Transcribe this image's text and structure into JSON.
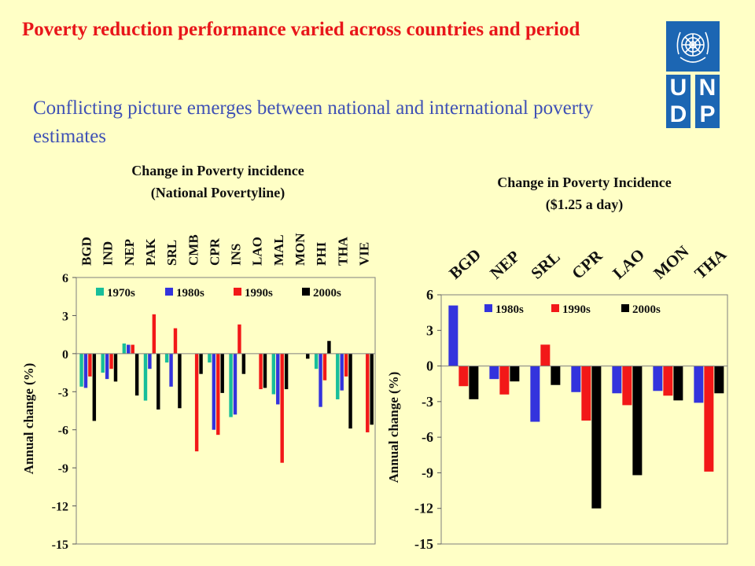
{
  "slide": {
    "title": "Poverty reduction performance varied across countries and period",
    "subtitle": "Conflicting picture emerges between national and international poverty estimates"
  },
  "logo": {
    "letters": [
      "U",
      "N",
      "D",
      "P"
    ]
  },
  "colors": {
    "background": "#FFFFC6",
    "title": "#E8161A",
    "subtitle": "#3F51B5",
    "logo": "#1C66B3",
    "series": {
      "1970s": "#17BE9A",
      "1980s": "#3333DD",
      "1990s": "#F21818",
      "2000s": "#000000"
    }
  },
  "chart_data": [
    {
      "type": "bar",
      "title": "Change in Poverty incidence",
      "subtitle": "(National Povertyline)",
      "ylabel": "Annual change (%)",
      "xlabel": "",
      "ylim": [
        -15,
        6
      ],
      "yticks": [
        6,
        3,
        0,
        -3,
        -6,
        -9,
        -12,
        -15
      ],
      "grid": false,
      "legend_position": "top",
      "category_labels_position": "top-rotated",
      "categories": [
        "BGD",
        "IND",
        "NEP",
        "PAK",
        "SRL",
        "CMB",
        "CPR",
        "INS",
        "LAO",
        "MAL",
        "MON",
        "PHI",
        "THA",
        "VIE"
      ],
      "series": [
        {
          "name": "1970s",
          "values": [
            -2.6,
            -1.5,
            0.8,
            -3.7,
            -0.7,
            null,
            -0.7,
            -5.0,
            null,
            -3.2,
            null,
            -1.2,
            -3.6,
            null
          ]
        },
        {
          "name": "1980s",
          "values": [
            -2.7,
            -2.0,
            0.7,
            -1.2,
            -2.6,
            null,
            -6.0,
            -4.8,
            null,
            -4.0,
            null,
            -4.2,
            -2.9,
            null
          ]
        },
        {
          "name": "1990s",
          "values": [
            -1.8,
            -1.2,
            0.7,
            3.1,
            2.0,
            -7.7,
            -6.4,
            2.3,
            -2.8,
            -8.6,
            null,
            -2.1,
            -1.8,
            -6.2
          ]
        },
        {
          "name": "2000s",
          "values": [
            -5.3,
            -2.2,
            -3.3,
            -4.4,
            -4.3,
            -1.6,
            -3.1,
            -1.6,
            -2.7,
            -2.8,
            -0.4,
            1.0,
            -5.9,
            -5.6
          ]
        }
      ]
    },
    {
      "type": "bar",
      "title": "Change in Poverty Incidence",
      "subtitle": "($1.25 a day)",
      "ylabel": "Annual change (%)",
      "xlabel": "",
      "ylim": [
        -15,
        6
      ],
      "yticks": [
        6,
        3,
        0,
        -3,
        -6,
        -9,
        -12,
        -15
      ],
      "grid": false,
      "legend_position": "top",
      "category_labels_position": "top-rotated",
      "categories": [
        "BGD",
        "NEP",
        "SRL",
        "CPR",
        "LAO",
        "MON",
        "THA"
      ],
      "series": [
        {
          "name": "1980s",
          "values": [
            5.1,
            -1.1,
            -4.7,
            -2.2,
            -2.3,
            -2.1,
            -3.1
          ]
        },
        {
          "name": "1990s",
          "values": [
            -1.7,
            -2.4,
            1.8,
            -4.6,
            -3.3,
            -2.5,
            -8.9
          ]
        },
        {
          "name": "2000s",
          "values": [
            -2.8,
            -1.3,
            -1.6,
            -12.0,
            -9.2,
            -2.9,
            -2.3
          ]
        }
      ]
    }
  ]
}
